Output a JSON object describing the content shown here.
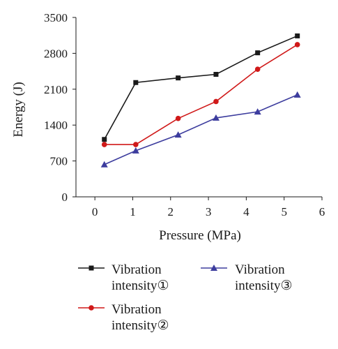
{
  "chart_data": {
    "type": "line",
    "xlabel": "Pressure (MPa)",
    "ylabel": "Energy (J)",
    "xlim": [
      -0.5,
      6
    ],
    "ylim": [
      0,
      3500
    ],
    "xticks": [
      0,
      1,
      2,
      3,
      4,
      5,
      6
    ],
    "yticks": [
      0,
      700,
      1400,
      2100,
      2800,
      3500
    ],
    "xtick_labels": [
      "0",
      "1",
      "2",
      "3",
      "4",
      "5",
      "6"
    ],
    "ytick_labels": [
      "0",
      "700",
      "1400",
      "2100",
      "2800",
      "3500"
    ],
    "grid": false,
    "legend_position": "bottom",
    "series": [
      {
        "name": "Vibration intensity①",
        "legend_lines": [
          "Vibration",
          "intensity①"
        ],
        "color": "#1a1a1a",
        "marker": "square",
        "x": [
          0.25,
          1.08,
          2.2,
          3.2,
          4.3,
          5.35
        ],
        "y": [
          1120,
          2230,
          2320,
          2390,
          2810,
          3140
        ]
      },
      {
        "name": "Vibration intensity②",
        "legend_lines": [
          "Vibration",
          "intensity②"
        ],
        "color": "#d01919",
        "marker": "circle",
        "x": [
          0.25,
          1.08,
          2.2,
          3.2,
          4.3,
          5.35
        ],
        "y": [
          1020,
          1020,
          1530,
          1860,
          2490,
          2970
        ]
      },
      {
        "name": "Vibration intensity③",
        "legend_lines": [
          "Vibration",
          "intensity③"
        ],
        "color": "#3d3d9e",
        "marker": "triangle",
        "x": [
          0.25,
          1.08,
          2.2,
          3.2,
          4.3,
          5.35
        ],
        "y": [
          630,
          900,
          1210,
          1540,
          1660,
          1990
        ]
      }
    ]
  }
}
